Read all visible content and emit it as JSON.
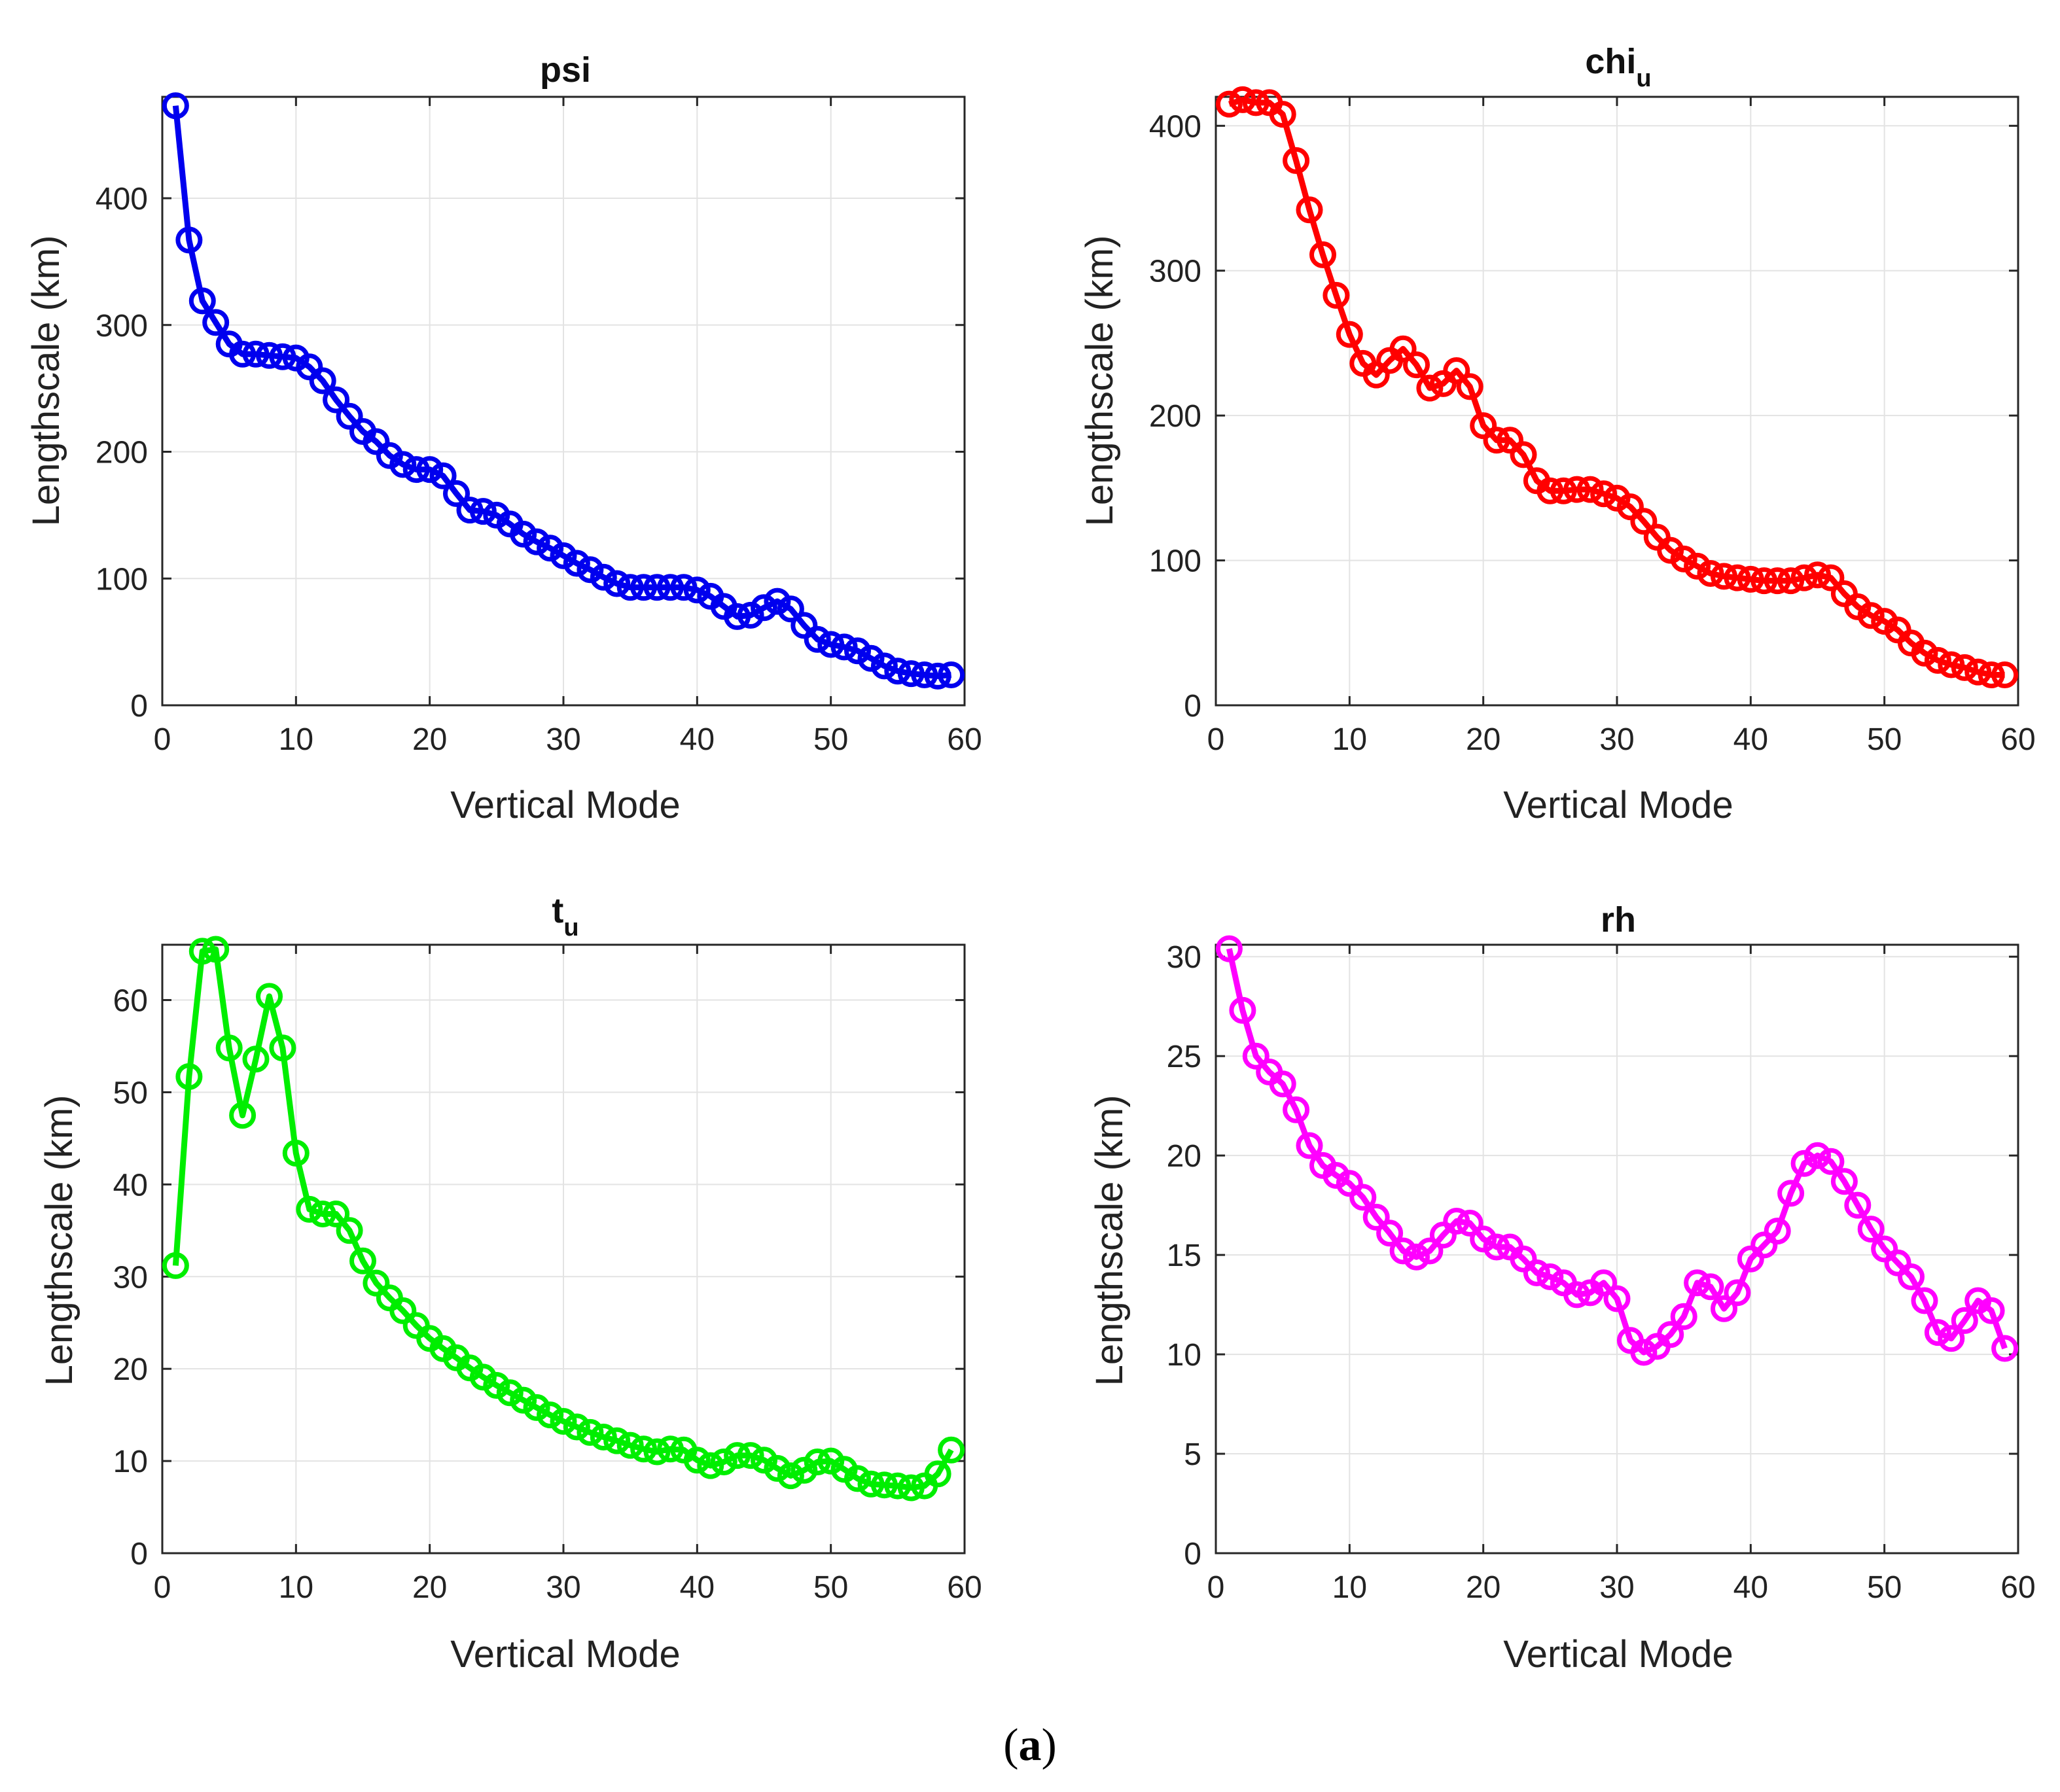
{
  "caption": {
    "open": "(",
    "label": "a",
    "close": ")"
  },
  "colors": {
    "psi": "#0000ee",
    "chi_u": "#ff0000",
    "t_u": "#00ee00",
    "rh": "#ff00ff",
    "grid": "#e3e3e3",
    "axis": "#262626"
  },
  "chart_data": [
    {
      "type": "line",
      "title": "psi",
      "title_sub": "",
      "xlabel": "Vertical Mode",
      "ylabel": "Lengthscale (km)",
      "xlim": [
        0,
        60
      ],
      "ylim": [
        0,
        480
      ],
      "xticks": [
        0,
        10,
        20,
        30,
        40,
        50,
        60
      ],
      "yticks": [
        0,
        100,
        200,
        300,
        400
      ],
      "grid": true,
      "marker": "circle",
      "color": "#0000ee",
      "x": [
        1,
        2,
        3,
        4,
        5,
        6,
        7,
        8,
        9,
        10,
        11,
        12,
        13,
        14,
        15,
        16,
        17,
        18,
        19,
        20,
        21,
        22,
        23,
        24,
        25,
        26,
        27,
        28,
        29,
        30,
        31,
        32,
        33,
        34,
        35,
        36,
        37,
        38,
        39,
        40,
        41,
        42,
        43,
        44,
        45,
        46,
        47,
        48,
        49,
        50,
        51,
        52,
        53,
        54,
        55,
        56,
        57,
        58,
        59
      ],
      "values": [
        473,
        367,
        319,
        302,
        285,
        277,
        277,
        276,
        275,
        274,
        267,
        256,
        241,
        228,
        216,
        208,
        197,
        190,
        186,
        186,
        181,
        167,
        154,
        153,
        150,
        143,
        135,
        129,
        124,
        118,
        112,
        107,
        101,
        96,
        93,
        93,
        93,
        93,
        93,
        91,
        86,
        78,
        70,
        71,
        77,
        82,
        76,
        63,
        52,
        48,
        46,
        43,
        37,
        31,
        27,
        25,
        24,
        23,
        24
      ]
    },
    {
      "type": "line",
      "title": "chi",
      "title_sub": "u",
      "xlabel": "Vertical Mode",
      "ylabel": "Lengthscale (km)",
      "xlim": [
        0,
        60
      ],
      "ylim": [
        0,
        420
      ],
      "xticks": [
        0,
        10,
        20,
        30,
        40,
        50,
        60
      ],
      "yticks": [
        0,
        100,
        200,
        300,
        400
      ],
      "grid": true,
      "marker": "circle",
      "color": "#ff0000",
      "x": [
        1,
        2,
        3,
        4,
        5,
        6,
        7,
        8,
        9,
        10,
        11,
        12,
        13,
        14,
        15,
        16,
        17,
        18,
        19,
        20,
        21,
        22,
        23,
        24,
        25,
        26,
        27,
        28,
        29,
        30,
        31,
        32,
        33,
        34,
        35,
        36,
        37,
        38,
        39,
        40,
        41,
        42,
        43,
        44,
        45,
        46,
        47,
        48,
        49,
        50,
        51,
        52,
        53,
        54,
        55,
        56,
        57,
        58,
        59
      ],
      "values": [
        415,
        418,
        416,
        416,
        408,
        376,
        342,
        311,
        283,
        256,
        236,
        228,
        238,
        246,
        235,
        219,
        222,
        231,
        220,
        193,
        183,
        183,
        173,
        155,
        148,
        148,
        149,
        149,
        146,
        143,
        137,
        127,
        116,
        107,
        101,
        96,
        91,
        89,
        88,
        87,
        86,
        86,
        86,
        88,
        90,
        88,
        77,
        68,
        62,
        58,
        52,
        43,
        36,
        31,
        28,
        26,
        23,
        21,
        21
      ]
    },
    {
      "type": "line",
      "title": "t",
      "title_sub": "u",
      "xlabel": "Vertical Mode",
      "ylabel": "Lengthscale (km)",
      "xlim": [
        0,
        60
      ],
      "ylim": [
        0,
        66
      ],
      "xticks": [
        0,
        10,
        20,
        30,
        40,
        50,
        60
      ],
      "yticks": [
        0,
        10,
        20,
        30,
        40,
        50,
        60
      ],
      "grid": true,
      "marker": "circle",
      "color": "#00ee00",
      "x": [
        1,
        2,
        3,
        4,
        5,
        6,
        7,
        8,
        9,
        10,
        11,
        12,
        13,
        14,
        15,
        16,
        17,
        18,
        19,
        20,
        21,
        22,
        23,
        24,
        25,
        26,
        27,
        28,
        29,
        30,
        31,
        32,
        33,
        34,
        35,
        36,
        37,
        38,
        39,
        40,
        41,
        42,
        43,
        44,
        45,
        46,
        47,
        48,
        49,
        50,
        51,
        52,
        53,
        54,
        55,
        56,
        57,
        58,
        59
      ],
      "values": [
        31.2,
        51.7,
        65.3,
        65.5,
        54.8,
        47.5,
        53.6,
        60.4,
        54.8,
        43.4,
        37.3,
        36.8,
        36.8,
        35.0,
        31.7,
        29.3,
        27.7,
        26.3,
        24.7,
        23.3,
        22.2,
        21.2,
        20.1,
        19.1,
        18.2,
        17.4,
        16.6,
        15.8,
        15.0,
        14.3,
        13.7,
        13.1,
        12.6,
        12.2,
        11.7,
        11.3,
        11.0,
        11.3,
        11.2,
        10.1,
        9.5,
        9.9,
        10.6,
        10.6,
        10.1,
        9.2,
        8.4,
        9.0,
        9.9,
        10.0,
        9.1,
        8.1,
        7.5,
        7.4,
        7.3,
        7.1,
        7.3,
        8.6,
        11.2
      ]
    },
    {
      "type": "line",
      "title": "rh",
      "title_sub": "",
      "xlabel": "Vertical Mode",
      "ylabel": "Lengthscale (km)",
      "xlim": [
        0,
        60
      ],
      "ylim": [
        0,
        30.6
      ],
      "xticks": [
        0,
        10,
        20,
        30,
        40,
        50,
        60
      ],
      "yticks": [
        0,
        5,
        10,
        15,
        20,
        25,
        30
      ],
      "grid": true,
      "marker": "circle",
      "color": "#ff00ff",
      "x": [
        1,
        2,
        3,
        4,
        5,
        6,
        7,
        8,
        9,
        10,
        11,
        12,
        13,
        14,
        15,
        16,
        17,
        18,
        19,
        20,
        21,
        22,
        23,
        24,
        25,
        26,
        27,
        28,
        29,
        30,
        31,
        32,
        33,
        34,
        35,
        36,
        37,
        38,
        39,
        40,
        41,
        42,
        43,
        44,
        45,
        46,
        47,
        48,
        49,
        50,
        51,
        52,
        53,
        54,
        55,
        56,
        57,
        58,
        59
      ],
      "values": [
        30.4,
        27.3,
        25.0,
        24.2,
        23.6,
        22.3,
        20.5,
        19.5,
        19.0,
        18.6,
        17.9,
        16.9,
        16.1,
        15.2,
        14.9,
        15.2,
        16.0,
        16.7,
        16.6,
        15.8,
        15.4,
        15.4,
        14.8,
        14.1,
        13.9,
        13.6,
        13.0,
        13.1,
        13.6,
        12.8,
        10.7,
        10.1,
        10.4,
        11.0,
        11.9,
        13.6,
        13.4,
        12.3,
        13.1,
        14.8,
        15.5,
        16.2,
        18.1,
        19.6,
        20.0,
        19.7,
        18.7,
        17.5,
        16.3,
        15.3,
        14.6,
        13.9,
        12.7,
        11.1,
        10.8,
        11.7,
        12.7,
        12.2,
        10.3
      ]
    }
  ]
}
